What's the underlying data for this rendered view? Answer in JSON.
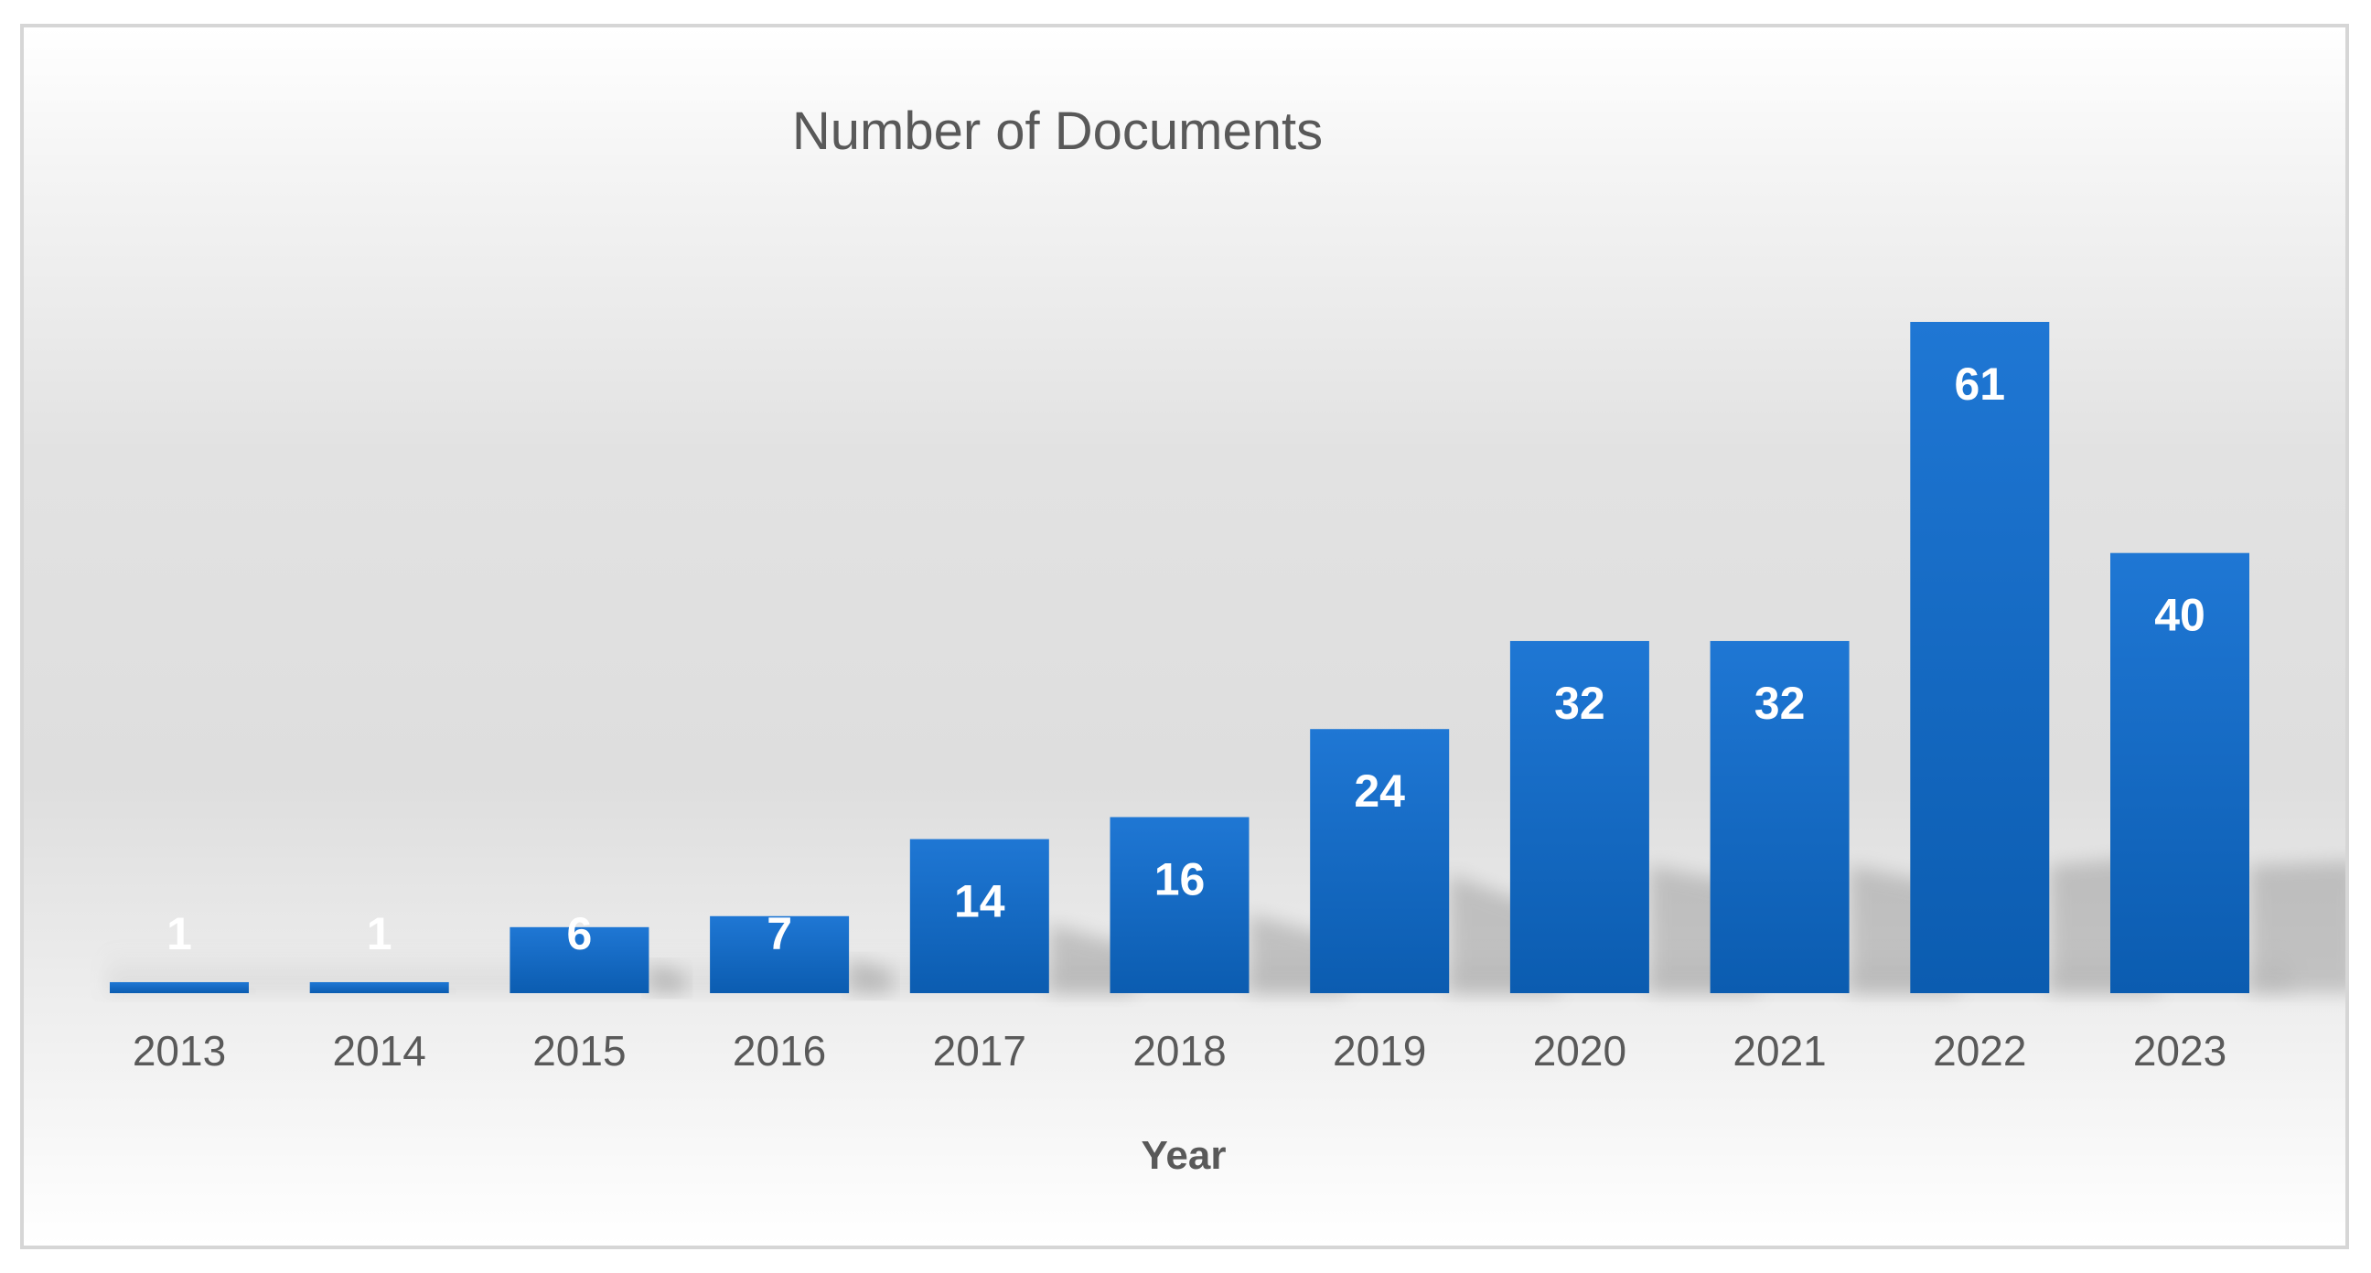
{
  "chart_data": {
    "type": "bar",
    "title": "Number of Documents",
    "xlabel": "Year",
    "ylabel": "",
    "categories": [
      "2013",
      "2014",
      "2015",
      "2016",
      "2017",
      "2018",
      "2019",
      "2020",
      "2021",
      "2022",
      "2023"
    ],
    "values": [
      1,
      1,
      6,
      7,
      14,
      16,
      24,
      32,
      32,
      61,
      40
    ],
    "value_labels": [
      "1",
      "1",
      "6",
      "7",
      "14",
      "16",
      "24",
      "32",
      "32",
      "61",
      "40"
    ],
    "ylim": [
      0,
      75
    ],
    "grid": false,
    "legend": "none",
    "colors": {
      "bar_top": "#1f77d4",
      "bar_bottom": "#0b5cb0",
      "value_label": "#ffffff",
      "tick_label": "#595959",
      "title": "#595959",
      "axis_title": "#595959",
      "frame": "#d6d6d6"
    }
  }
}
